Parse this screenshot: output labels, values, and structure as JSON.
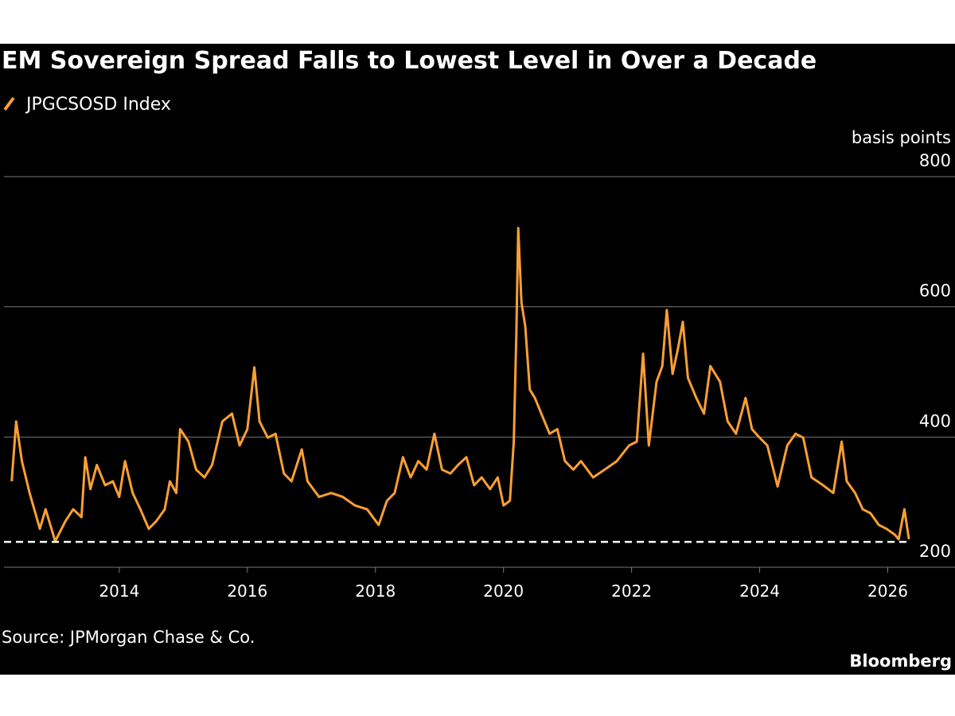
{
  "chart_data": {
    "type": "line",
    "title": "EM Sovereign Spread Falls to Lowest Level in Over a Decade",
    "y_label": "basis points",
    "source": "Source: JPMorgan Chase & Co.",
    "brand": "Bloomberg",
    "x": [
      2012.32,
      2012.39,
      2012.48,
      2012.6,
      2012.76,
      2012.85,
      2013.0,
      2013.16,
      2013.28,
      2013.41,
      2013.47,
      2013.55,
      2013.65,
      2013.78,
      2013.9,
      2014.0,
      2014.09,
      2014.21,
      2014.33,
      2014.46,
      2014.58,
      2014.71,
      2014.79,
      2014.89,
      2014.95,
      2015.08,
      2015.2,
      2015.33,
      2015.45,
      2015.61,
      2015.76,
      2015.88,
      2016.0,
      2016.11,
      2016.19,
      2016.32,
      2016.44,
      2016.57,
      2016.69,
      2016.85,
      2016.94,
      2017.12,
      2017.31,
      2017.49,
      2017.68,
      2017.87,
      2018.05,
      2018.18,
      2018.3,
      2018.43,
      2018.55,
      2018.67,
      2018.8,
      2018.92,
      2019.04,
      2019.17,
      2019.29,
      2019.42,
      2019.54,
      2019.66,
      2019.79,
      2019.91,
      2020.0,
      2020.1,
      2020.16,
      2020.2,
      2020.23,
      2020.28,
      2020.34,
      2020.41,
      2020.49,
      2020.59,
      2020.72,
      2020.84,
      2020.96,
      2021.09,
      2021.21,
      2021.4,
      2021.58,
      2021.77,
      2021.96,
      2022.08,
      2022.18,
      2022.27,
      2022.39,
      2022.48,
      2022.55,
      2022.64,
      2022.72,
      2022.8,
      2022.88,
      2023.01,
      2023.13,
      2023.23,
      2023.38,
      2023.5,
      2023.63,
      2023.78,
      2023.88,
      2024.0,
      2024.12,
      2024.28,
      2024.43,
      2024.56,
      2024.68,
      2024.81,
      2024.99,
      2025.15,
      2025.28,
      2025.36,
      2025.49,
      2025.61,
      2025.73,
      2025.86,
      2025.98,
      2026.11,
      2026.17,
      2026.26,
      2026.33
    ],
    "series": [
      {
        "name": "JPGCSOSD Index",
        "color": "#fb9f33",
        "values": [
          332,
          424,
          363,
          314,
          259,
          289,
          240,
          271,
          289,
          277,
          369,
          320,
          357,
          326,
          332,
          308,
          363,
          314,
          289,
          259,
          271,
          289,
          332,
          314,
          412,
          393,
          350,
          338,
          357,
          424,
          436,
          387,
          412,
          507,
          424,
          399,
          405,
          344,
          332,
          381,
          332,
          308,
          314,
          308,
          295,
          289,
          265,
          302,
          314,
          369,
          338,
          363,
          350,
          405,
          350,
          344,
          357,
          369,
          326,
          338,
          320,
          338,
          295,
          302,
          393,
          558,
          721,
          607,
          570,
          473,
          460,
          436,
          405,
          412,
          363,
          350,
          363,
          338,
          350,
          363,
          387,
          393,
          528,
          387,
          485,
          509,
          595,
          497,
          534,
          577,
          491,
          460,
          436,
          509,
          485,
          424,
          405,
          460,
          412,
          399,
          387,
          324,
          387,
          405,
          399,
          338,
          326,
          314,
          393,
          332,
          314,
          289,
          283,
          265,
          259,
          250,
          243,
          289,
          243
        ]
      }
    ],
    "reference_line": 239,
    "xlim": [
      2012.2,
      2027.05
    ],
    "xticks": [
      2014,
      2016,
      2018,
      2020,
      2022,
      2024,
      2026
    ],
    "ylim": [
      200,
      800
    ],
    "yticks": [
      200,
      400,
      600,
      800
    ],
    "grid": true
  }
}
